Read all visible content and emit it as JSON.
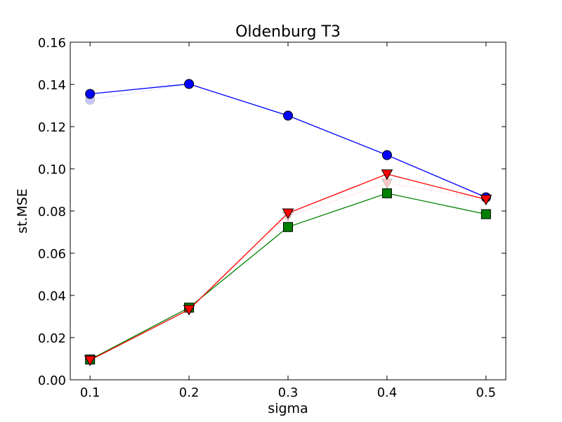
{
  "chart_data": {
    "type": "line",
    "title": "Oldenburg T3",
    "xlabel": "sigma",
    "ylabel": "st.MSE",
    "xlim": [
      0.08,
      0.52
    ],
    "ylim": [
      0.0,
      0.16
    ],
    "x_ticks": [
      0.1,
      0.2,
      0.3,
      0.4,
      0.5
    ],
    "x_tick_labels": [
      "0.1",
      "0.2",
      "0.3",
      "0.4",
      "0.5"
    ],
    "y_ticks": [
      0.0,
      0.02,
      0.04,
      0.06,
      0.08,
      0.1,
      0.12,
      0.14,
      0.16
    ],
    "y_tick_labels": [
      "0.00",
      "0.02",
      "0.04",
      "0.06",
      "0.08",
      "0.10",
      "0.12",
      "0.14",
      "0.16"
    ],
    "grid": false,
    "x": [
      0.1,
      0.2,
      0.3,
      0.4,
      0.5
    ],
    "series": [
      {
        "name": "blue circles (faint)",
        "color": "#0000ff",
        "marker": "circle",
        "line": "dotted",
        "faint": true,
        "values": [
          0.1327,
          0.1402,
          0.1252,
          0.1065,
          0.0862
        ]
      },
      {
        "name": "red triangles (faint)",
        "color": "#ff0000",
        "marker": "triangle-down",
        "line": "dotted",
        "faint": true,
        "values": [
          0.0096,
          0.0333,
          0.0775,
          0.0932,
          0.0858
        ]
      },
      {
        "name": "blue circles",
        "color": "#0000ff",
        "marker": "circle",
        "line": "solid",
        "faint": false,
        "values": [
          0.1355,
          0.1402,
          0.1252,
          0.1065,
          0.0865
        ]
      },
      {
        "name": "green squares",
        "color": "#008000",
        "marker": "square",
        "line": "solid",
        "faint": false,
        "values": [
          0.0096,
          0.0342,
          0.0724,
          0.0884,
          0.0785
        ]
      },
      {
        "name": "red triangles",
        "color": "#ff0000",
        "marker": "triangle-down",
        "line": "solid",
        "faint": false,
        "values": [
          0.0093,
          0.0333,
          0.079,
          0.0975,
          0.0855
        ]
      }
    ]
  }
}
